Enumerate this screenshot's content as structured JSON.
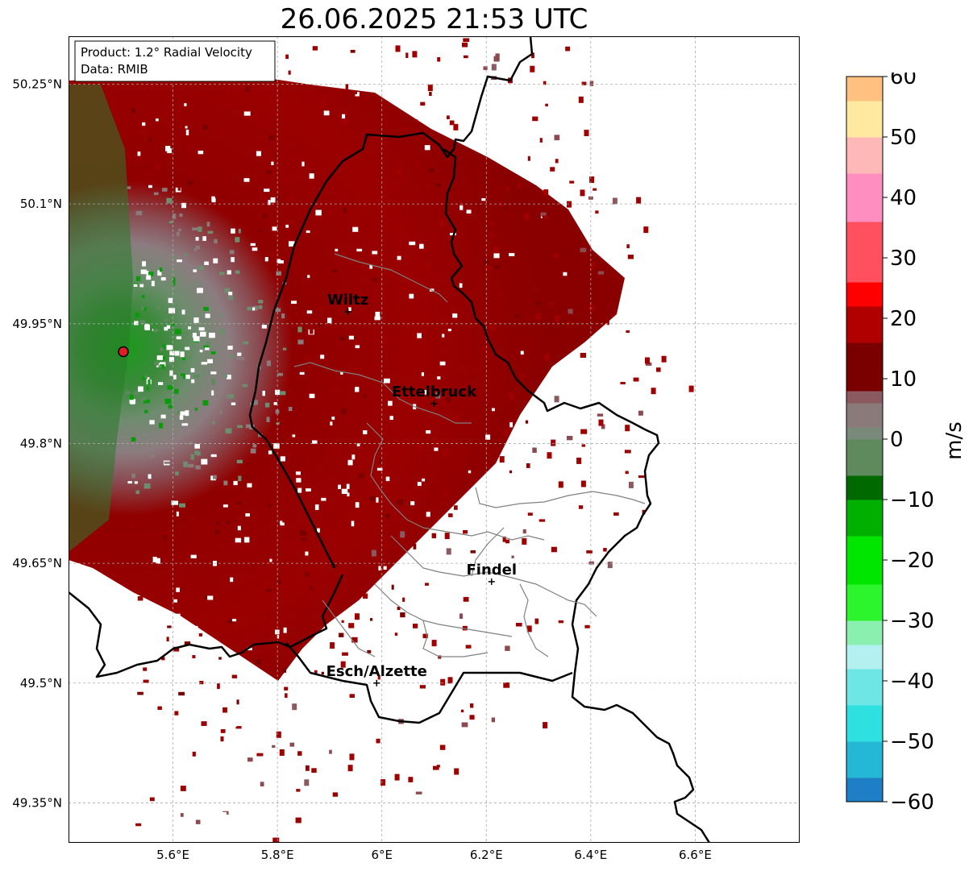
{
  "title": "26.06.2025 21:53 UTC",
  "info_box": {
    "product": "Product: 1.2° Radial Velocity",
    "data": "Data: RMIB"
  },
  "lat_ticks": [
    "50.25°N",
    "50.1°N",
    "49.95°N",
    "49.8°N",
    "49.65°N",
    "49.5°N",
    "49.35°N"
  ],
  "lon_ticks": [
    "5.6°E",
    "5.8°E",
    "6°E",
    "6.2°E",
    "6.4°E",
    "6.6°E"
  ],
  "cities": [
    {
      "name": "Wiltz",
      "lon": 5.935,
      "lat": 49.965
    },
    {
      "name": "Ettelbruck",
      "lon": 6.1,
      "lat": 49.85
    },
    {
      "name": "Findel",
      "lon": 6.21,
      "lat": 49.627
    },
    {
      "name": "Esch/Alzette",
      "lon": 5.99,
      "lat": 49.5
    }
  ],
  "radar_site": {
    "lon": 5.505,
    "lat": 49.915
  },
  "colorbar": {
    "label": "m/s",
    "ticks": [
      "60",
      "50",
      "40",
      "30",
      "20",
      "10",
      "0",
      "−10",
      "−20",
      "−30",
      "−40",
      "−50",
      "−60"
    ],
    "min": -60,
    "max": 60,
    "stops": [
      {
        "v": -60,
        "c": "#1f7fc6"
      },
      {
        "v": -56,
        "c": "#24b7d6"
      },
      {
        "v": -50,
        "c": "#2fe0e0"
      },
      {
        "v": -44,
        "c": "#6ee6e6"
      },
      {
        "v": -38,
        "c": "#b4f0f0"
      },
      {
        "v": -34,
        "c": "#8af0b0"
      },
      {
        "v": -30,
        "c": "#2df52d"
      },
      {
        "v": -24,
        "c": "#00e600"
      },
      {
        "v": -16,
        "c": "#00b000"
      },
      {
        "v": -10,
        "c": "#006a00"
      },
      {
        "v": -6,
        "c": "#5e8a5e"
      },
      {
        "v": 0,
        "c": "#7a8a7a"
      },
      {
        "v": 2,
        "c": "#8a7a7a"
      },
      {
        "v": 6,
        "c": "#8a5a60"
      },
      {
        "v": 8,
        "c": "#7a0000"
      },
      {
        "v": 16,
        "c": "#b00000"
      },
      {
        "v": 22,
        "c": "#ff0000"
      },
      {
        "v": 26,
        "c": "#ff5060"
      },
      {
        "v": 36,
        "c": "#ff8ec0"
      },
      {
        "v": 44,
        "c": "#ffb8b8"
      },
      {
        "v": 50,
        "c": "#ffe8a0"
      },
      {
        "v": 56,
        "c": "#ffc080"
      },
      {
        "v": 60,
        "c": "#ffa060"
      }
    ]
  }
}
